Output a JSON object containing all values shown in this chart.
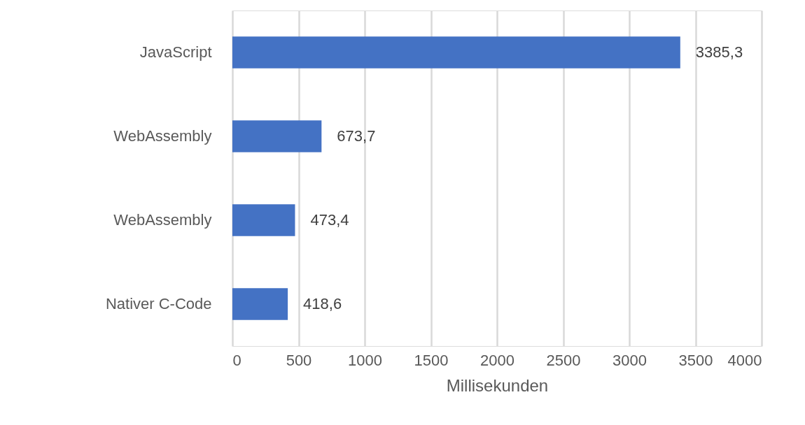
{
  "chart_data": {
    "type": "bar",
    "orientation": "horizontal",
    "xlabel": "Millisekunden",
    "categories": [
      "JavaScript",
      "WebAssembly",
      "WebAssembly",
      "Nativer C-Code"
    ],
    "values": [
      3385.3,
      673.7,
      473.4,
      418.6
    ],
    "value_labels": [
      "3385,3",
      "673,7",
      "473,4",
      "418,6"
    ],
    "color": "#4472c4",
    "xlim": [
      0,
      4000
    ],
    "xticks": [
      0,
      500,
      1000,
      1500,
      2000,
      2500,
      3000,
      3500,
      4000
    ],
    "grid": "x"
  }
}
